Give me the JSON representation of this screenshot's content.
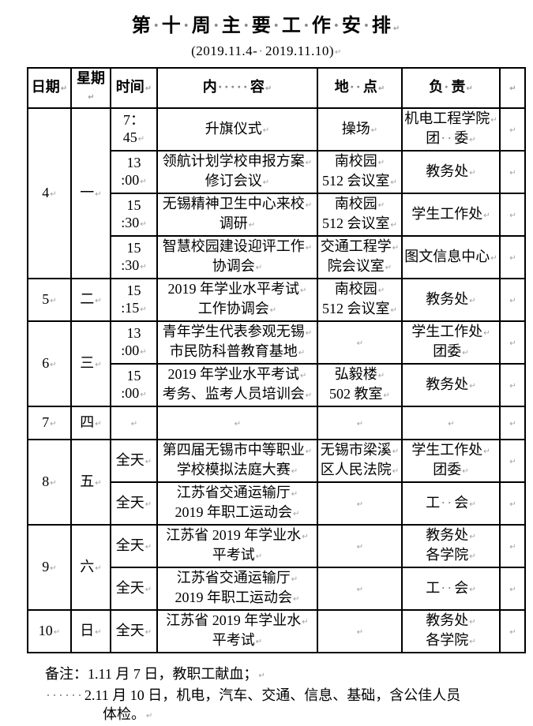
{
  "title": "第·十·周·主·要·工·作·安·排",
  "subtitle": "(2019.11.4-·2019.11.10)",
  "marks": {
    "pilcrow": "↵"
  },
  "table": {
    "headers": [
      "日期",
      "星期",
      "时间",
      "内·····容",
      "地··点",
      "负·责"
    ],
    "groups": [
      {
        "date": "4",
        "weekday": "一",
        "rows": [
          {
            "time": "7：45",
            "content": "升旗仪式",
            "location": "操场",
            "responsible": "机电工程学院\n团··委"
          },
          {
            "time": "13 :00",
            "content": "领航计划学校申报方案\n修订会议",
            "location": "南校园\n512 会议室",
            "responsible": "教务处"
          },
          {
            "time": "15 :30",
            "content": "无锡精神卫生中心来校\n调研",
            "location": "南校园\n512 会议室",
            "responsible": "学生工作处"
          },
          {
            "time": "15 :30",
            "content": "智慧校园建设迎评工作\n协调会",
            "location": "交通工程学\n院会议室",
            "responsible": "图文信息中心"
          }
        ]
      },
      {
        "date": "5",
        "weekday": "二",
        "rows": [
          {
            "time": "15 :15",
            "content": "2019 年学业水平考试\n工作协调会",
            "location": "南校园\n512 会议室",
            "responsible": "教务处"
          }
        ]
      },
      {
        "date": "6",
        "weekday": "三",
        "rows": [
          {
            "time": "13 :00",
            "content": "青年学生代表参观无锡\n市民防科普教育基地",
            "location": "",
            "responsible": "学生工作处\n团委"
          },
          {
            "time": "15 :00",
            "content": "2019 年学业水平考试\n考务、监考人员培训会",
            "location": "弘毅楼\n502 教室",
            "responsible": "教务处"
          }
        ]
      },
      {
        "date": "7",
        "weekday": "四",
        "rows": [
          {
            "time": "",
            "content": "",
            "location": "",
            "responsible": ""
          }
        ]
      },
      {
        "date": "8",
        "weekday": "五",
        "rows": [
          {
            "time": "全天",
            "content": "第四届无锡市中等职业\n学校模拟法庭大赛",
            "location": "无锡市梁溪\n区人民法院",
            "responsible": "学生工作处\n团委"
          },
          {
            "time": "全天",
            "content": "江苏省交通运输厅\n2019 年职工运动会",
            "location": "",
            "responsible": "工··会"
          }
        ]
      },
      {
        "date": "9",
        "weekday": "六",
        "rows": [
          {
            "time": "全天",
            "content": "江苏省 2019 年学业水\n平考试",
            "location": "",
            "responsible": "教务处\n各学院"
          },
          {
            "time": "全天",
            "content": "江苏省交通运输厅\n2019 年职工运动会",
            "location": "",
            "responsible": "工··会"
          }
        ]
      },
      {
        "date": "10",
        "weekday": "日",
        "rows": [
          {
            "time": "全天",
            "content": "江苏省 2019 年学业水\n平考试",
            "location": "",
            "responsible": "教务处\n各学院"
          }
        ]
      }
    ]
  },
  "notes": {
    "line1": "备注：1.11 月 7 日，教职工献血；",
    "line2": "······2.11 月 10 日，机电，汽车、交通、信息、基础，含公佳人员",
    "line3": "体检。"
  }
}
